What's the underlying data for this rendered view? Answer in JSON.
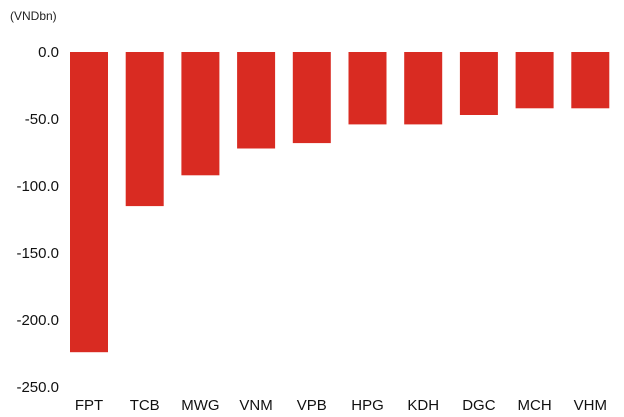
{
  "chart_data": {
    "type": "bar",
    "title": "",
    "unit_label": "(VNDbn)",
    "xlabel": "",
    "ylabel": "",
    "ylim": [
      -250,
      0
    ],
    "y_ticks": [
      0,
      -50,
      -100,
      -150,
      -200,
      -250
    ],
    "y_tick_labels": [
      "0.0",
      "-50.0",
      "-100.0",
      "-150.0",
      "-200.0",
      "-250.0"
    ],
    "categories": [
      "FPT",
      "TCB",
      "MWG",
      "VNM",
      "VPB",
      "HPG",
      "KDH",
      "DGC",
      "MCH",
      "VHM"
    ],
    "values": [
      -224,
      -115,
      -92,
      -72,
      -68,
      -54,
      -54,
      -47,
      -42,
      -42
    ],
    "bar_color": "#d92b22",
    "grid": false,
    "legend": "none"
  }
}
